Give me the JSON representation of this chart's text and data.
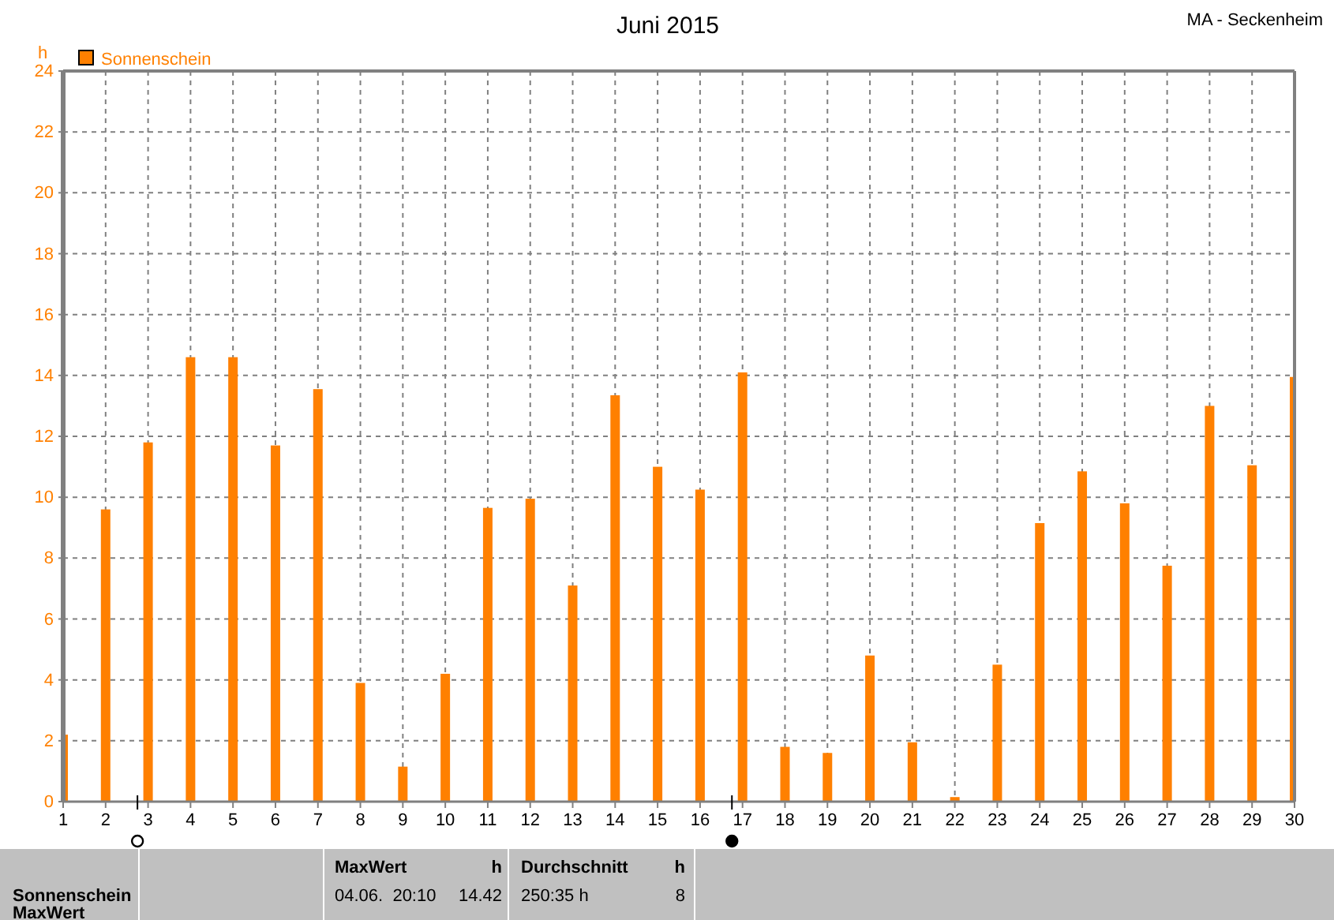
{
  "chart_data": {
    "type": "bar",
    "title": "Juni 2015",
    "subtitle": "MA - Seckenheim",
    "ylabel": "h",
    "x": [
      1,
      2,
      3,
      4,
      5,
      6,
      7,
      8,
      9,
      10,
      11,
      12,
      13,
      14,
      15,
      16,
      17,
      18,
      19,
      20,
      21,
      22,
      23,
      24,
      25,
      26,
      27,
      28,
      29,
      30
    ],
    "series": [
      {
        "name": "Sonnenschein",
        "color": "#ff8000",
        "values": [
          2.2,
          9.6,
          11.8,
          14.6,
          14.6,
          11.7,
          13.55,
          3.9,
          1.15,
          4.2,
          9.65,
          9.95,
          7.1,
          13.35,
          11.0,
          10.25,
          14.1,
          1.8,
          1.6,
          4.8,
          1.95,
          0.15,
          4.5,
          9.15,
          10.85,
          9.8,
          7.75,
          13.0,
          11.05,
          13.95
        ]
      }
    ],
    "xlim": [
      1,
      30
    ],
    "xticks": [
      1,
      2,
      3,
      4,
      5,
      6,
      7,
      8,
      9,
      10,
      11,
      12,
      13,
      14,
      15,
      16,
      17,
      18,
      19,
      20,
      21,
      22,
      23,
      24,
      25,
      26,
      27,
      28,
      29,
      30
    ],
    "ylim": [
      0,
      24
    ],
    "yticks": [
      0,
      2,
      4,
      6,
      8,
      10,
      12,
      14,
      16,
      18,
      20,
      22,
      24
    ],
    "grid": true,
    "legend": "top left",
    "annotations": [
      "Sonnenschein",
      "MaxWert",
      "h",
      "04.06.  20:10",
      "14.42",
      "Durchschnitt",
      "h",
      "250:35 h",
      "8",
      "MaxWert"
    ]
  }
}
